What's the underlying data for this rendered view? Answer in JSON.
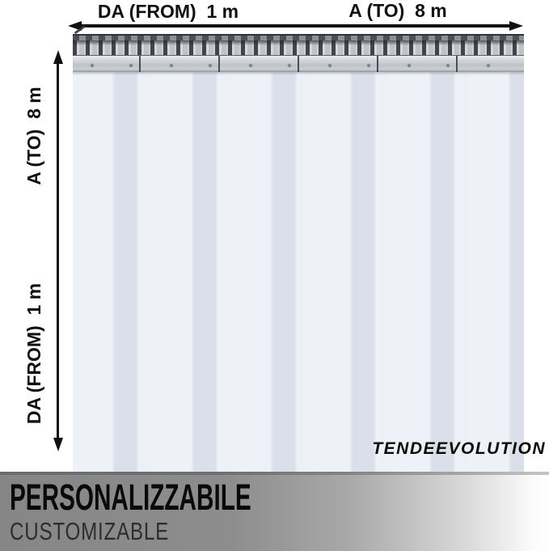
{
  "annotations": {
    "top": {
      "from": "DA (FROM)  1 m",
      "to": "A (TO)  8 m"
    },
    "left": {
      "to": "A (TO)  8 m",
      "from": "DA (FROM)  1 m"
    }
  },
  "brand": {
    "name": "TENDEEVOLUTION"
  },
  "banner": {
    "title": "PERSONALIZZABILE",
    "subtitle": "CUSTOMIZABLE"
  },
  "colors": {
    "strip_body": "#edf0f6",
    "strip_overlap": "#dadfe9",
    "rail_metal_light": "#c6cad0",
    "rail_dark": "#44484d",
    "annotation_text": "#111111",
    "banner_gradient_left": "#868686",
    "banner_gradient_right": "#ffffff",
    "banner_title_text": "#0a0a0a",
    "banner_subtitle_text": "#2d2d2d"
  }
}
